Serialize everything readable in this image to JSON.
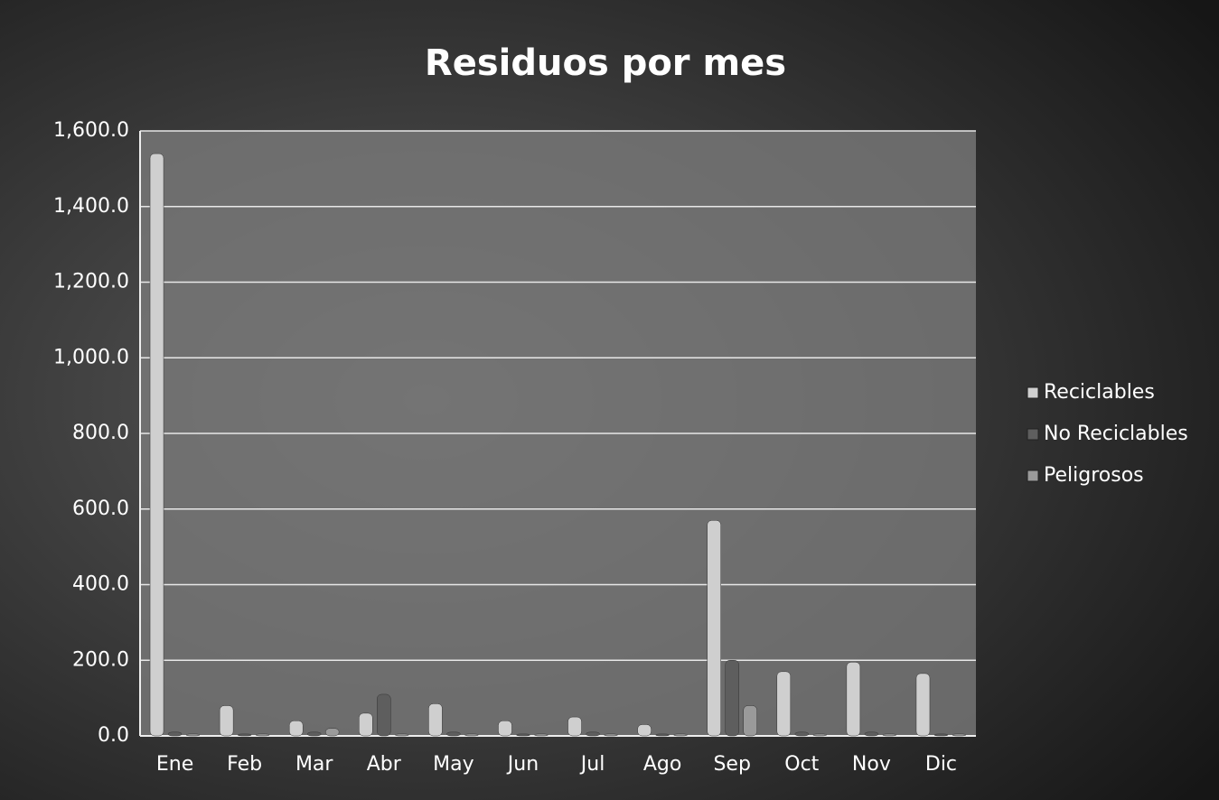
{
  "chart_data": {
    "type": "bar",
    "title": "Residuos por mes",
    "categories": [
      "Ene",
      "Feb",
      "Mar",
      "Abr",
      "May",
      "Jun",
      "Jul",
      "Ago",
      "Sep",
      "Oct",
      "Nov",
      "Dic"
    ],
    "series": [
      {
        "name": "Reciclables",
        "color": "#cfcfcf",
        "values": [
          1540,
          80,
          40,
          60,
          85,
          40,
          50,
          30,
          570,
          170,
          195,
          165
        ]
      },
      {
        "name": "No Reciclables",
        "color": "#5e5e5e",
        "values": [
          10,
          5,
          10,
          110,
          10,
          5,
          10,
          5,
          200,
          10,
          10,
          5
        ]
      },
      {
        "name": "Peligrosos",
        "color": "#9a9a9a",
        "values": [
          5,
          5,
          20,
          5,
          5,
          5,
          5,
          5,
          80,
          5,
          5,
          5
        ]
      }
    ],
    "ylim": [
      0,
      1600
    ],
    "yticks": [
      {
        "value": 0,
        "label": "0.0"
      },
      {
        "value": 200,
        "label": "200.0"
      },
      {
        "value": 400,
        "label": "400.0"
      },
      {
        "value": 600,
        "label": "600.0"
      },
      {
        "value": 800,
        "label": "800.0"
      },
      {
        "value": 1000,
        "label": "1,000.0"
      },
      {
        "value": 1200,
        "label": "1,200.0"
      },
      {
        "value": 1400,
        "label": "1,400.0"
      },
      {
        "value": 1600,
        "label": "1,600.0"
      }
    ],
    "grid": true,
    "legend": "right"
  }
}
